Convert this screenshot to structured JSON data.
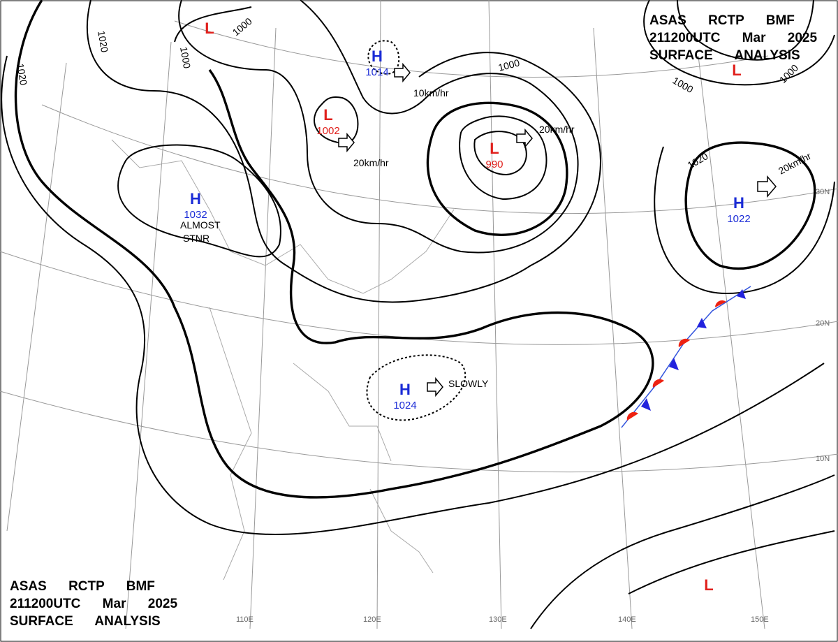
{
  "headers": [
    {
      "lines": [
        "ASAS RCTP BMF",
        "211200UTC Mar 2025",
        "SURFACE ANALYSIS"
      ]
    },
    {
      "lines": [
        "ASAS RCTP BMF",
        "211200UTC Mar 2025",
        "SURFACE ANALYSIS"
      ]
    }
  ],
  "pressure_centers": [
    {
      "symbol": "L"
    },
    {
      "symbol": "H",
      "pressure": 1014
    },
    {
      "symbol": "L",
      "pressure": 1002
    },
    {
      "symbol": "L",
      "pressure": 990
    },
    {
      "symbol": "H",
      "pressure": 1032
    },
    {
      "symbol": "H",
      "pressure": 1022
    },
    {
      "symbol": "H",
      "pressure": 1024
    },
    {
      "symbol": "L"
    },
    {
      "symbol": "L"
    }
  ],
  "motion_labels": [
    "10km/hr",
    "20km/hr",
    "20km/hr",
    "20km/hr",
    "SLOWLY",
    "ALMOST",
    "STNR"
  ],
  "isobar_labels": [
    1000,
    1000,
    1020,
    1020,
    1000,
    1000,
    1000,
    1020
  ],
  "grid_labels": {
    "longitude": [
      "110E",
      "120E",
      "130E",
      "140E",
      "150E"
    ],
    "latitude": [
      "10N",
      "20N",
      "30N"
    ]
  }
}
